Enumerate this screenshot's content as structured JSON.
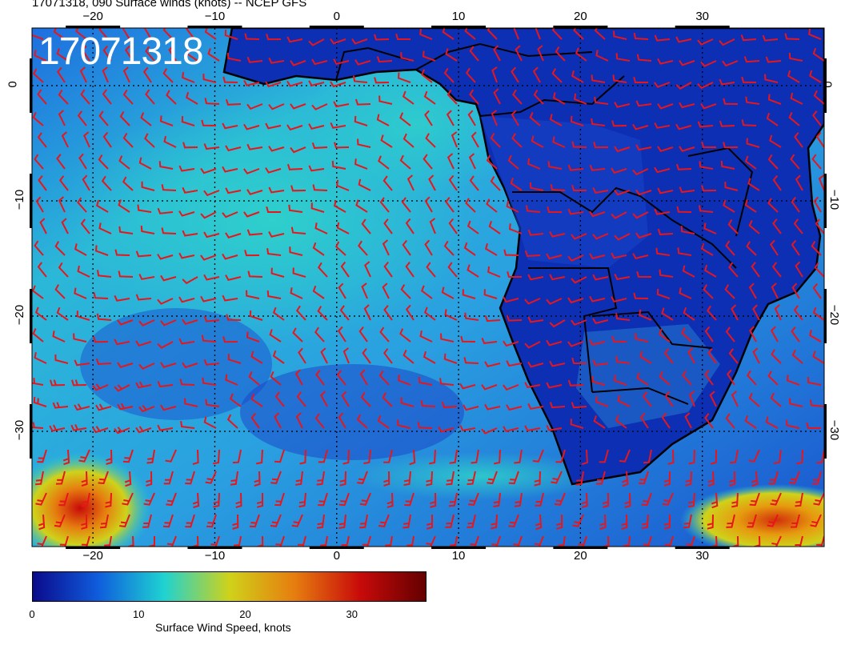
{
  "title": "17071318, 090 Surface winds (knots) -- NCEP GFS",
  "stamp": "17071318",
  "map": {
    "region": "South Atlantic and southern Africa",
    "lon_range": [
      -25,
      40
    ],
    "lat_range": [
      5,
      -40
    ],
    "barb_color": "#e8161b"
  },
  "axes": {
    "x_ticks": [
      "−20",
      "−10",
      "0",
      "10",
      "20",
      "30"
    ],
    "y_ticks": [
      "0",
      "−10",
      "−20",
      "−30"
    ]
  },
  "colorbar": {
    "ticks": [
      "0",
      "10",
      "20",
      "30"
    ],
    "label": "Surface Wind Speed, knots",
    "range": [
      0,
      37
    ],
    "colors": [
      "#0a0a8c",
      "#0f5ddc",
      "#1ed2d2",
      "#cfd21a",
      "#e67d0f",
      "#c80a0a",
      "#640000"
    ]
  }
}
